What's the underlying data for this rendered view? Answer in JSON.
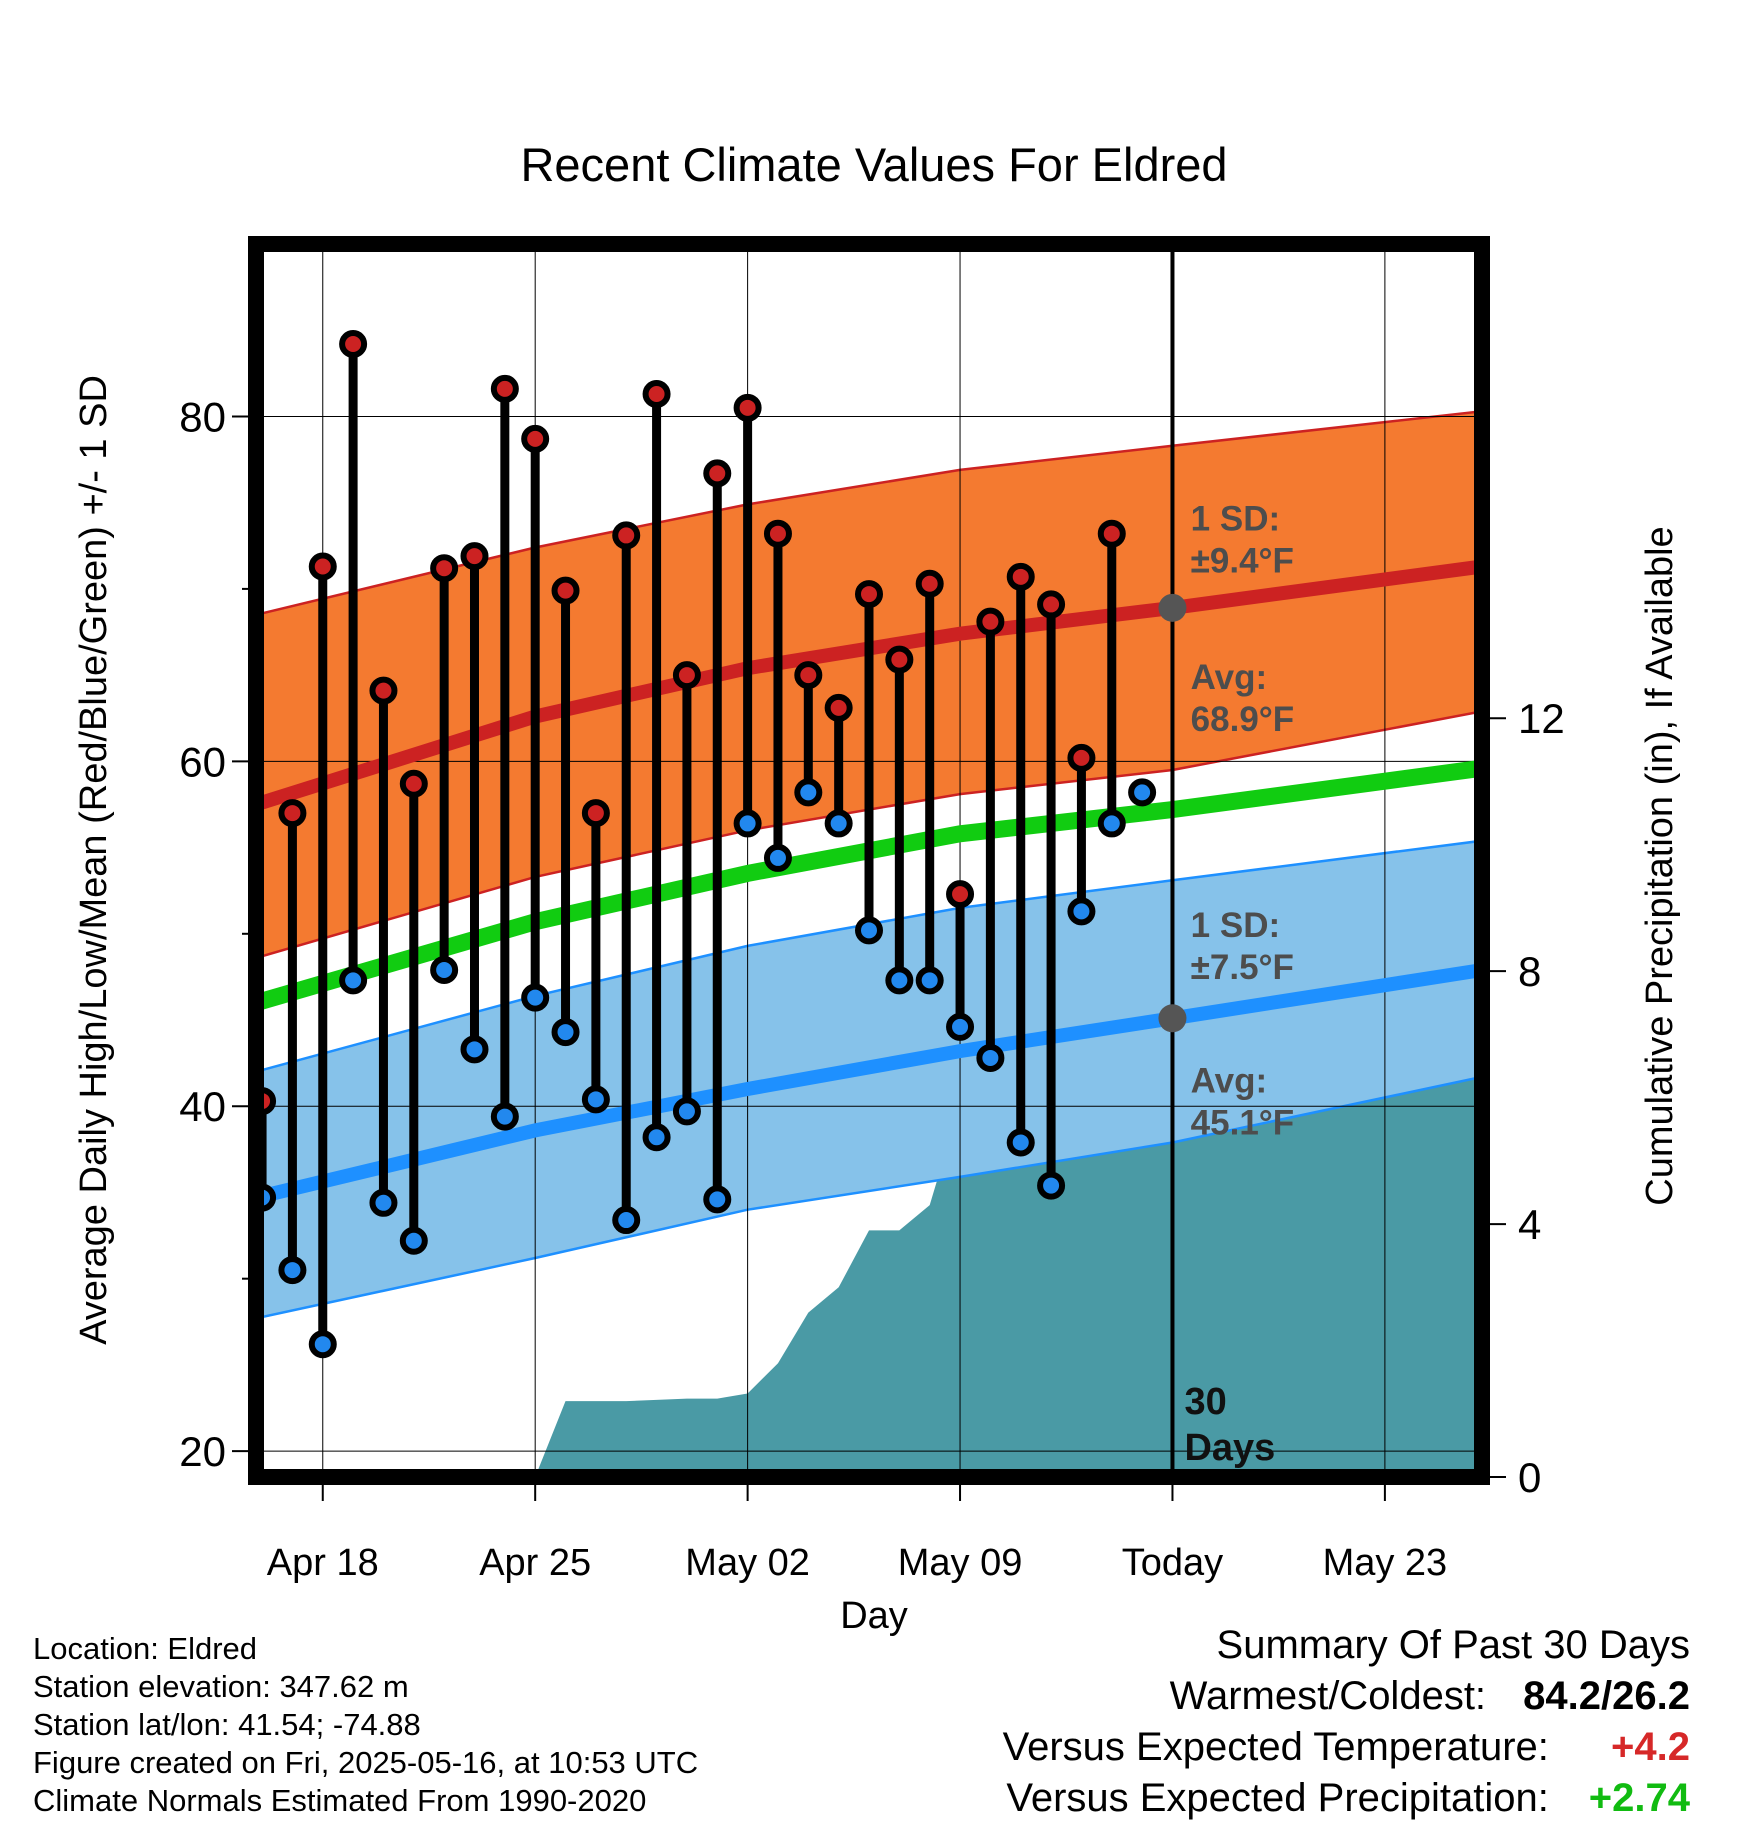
{
  "chart_data": {
    "type": "scatter",
    "title": "Recent Climate Values For Eldred",
    "xlabel": "Day",
    "ylabel": "Average Daily High/Low/Mean (Red/Blue/Green) +/- 1 SD",
    "y2label": "Cumulative Precipitation (in), If Available",
    "ylim": [
      18.5,
      90
    ],
    "y2lim": [
      0,
      19.5
    ],
    "xlim": [
      -2.2,
      38.2
    ],
    "yticks": [
      20,
      40,
      60,
      80
    ],
    "y2ticks": [
      0,
      4,
      8,
      12
    ],
    "x_tick_positions": [
      0,
      7,
      14,
      21,
      28,
      35
    ],
    "x_tick_labels": [
      "Apr 18",
      "Apr 25",
      "May 02",
      "May 09",
      "Today",
      "May 23"
    ],
    "grid": true,
    "today_marker": {
      "x": 28,
      "label_line1": "30",
      "label_line2": "Days"
    },
    "series": [
      {
        "name": "High",
        "color": "#cc2222",
        "x": [
          -2,
          -1,
          0,
          1,
          2,
          3,
          4,
          5,
          6,
          7,
          8,
          9,
          10,
          11,
          12,
          13,
          14,
          15,
          16,
          17,
          18,
          19,
          20,
          21,
          22,
          23,
          24,
          25,
          26,
          27
        ],
        "values": [
          40.3,
          57.0,
          71.3,
          84.2,
          64.1,
          58.7,
          71.2,
          71.9,
          81.6,
          78.7,
          69.9,
          57.0,
          73.1,
          81.3,
          65.0,
          76.7,
          80.5,
          73.2,
          65.0,
          63.1,
          69.7,
          65.9,
          70.3,
          52.3,
          68.1,
          70.7,
          69.1,
          60.2,
          73.2,
          null
        ]
      },
      {
        "name": "Low",
        "color": "#2288ee",
        "x": [
          -2,
          -1,
          0,
          1,
          2,
          3,
          4,
          5,
          6,
          7,
          8,
          9,
          10,
          11,
          12,
          13,
          14,
          15,
          16,
          17,
          18,
          19,
          20,
          21,
          22,
          23,
          24,
          25,
          26,
          27
        ],
        "values": [
          34.7,
          30.5,
          26.2,
          47.3,
          34.4,
          32.2,
          47.9,
          43.3,
          39.4,
          46.3,
          44.3,
          40.4,
          33.4,
          38.2,
          39.7,
          34.6,
          56.4,
          54.4,
          58.2,
          56.4,
          50.2,
          47.3,
          47.3,
          44.6,
          42.8,
          37.9,
          35.4,
          51.3,
          56.4,
          58.2
        ]
      },
      {
        "name": "Avg High",
        "color": "#cc2222",
        "x": [
          -2.2,
          7,
          14,
          21,
          28,
          38.2
        ],
        "values": [
          57.5,
          62.6,
          65.4,
          67.4,
          68.9,
          71.3
        ]
      },
      {
        "name": "Avg High +/- 1 SD",
        "color": "#f47a30",
        "x": [
          -2.2,
          7,
          14,
          21,
          28,
          38.2
        ],
        "upper": [
          68.5,
          72.4,
          74.9,
          76.9,
          78.3,
          80.3
        ],
        "lower": [
          48.6,
          53.3,
          56.0,
          58.1,
          59.5,
          62.9
        ]
      },
      {
        "name": "Avg Mean",
        "color": "#11cc11",
        "x": [
          -2.2,
          7,
          14,
          21,
          28,
          38.2
        ],
        "values": [
          46.0,
          50.7,
          53.5,
          55.8,
          57.2,
          59.6
        ]
      },
      {
        "name": "Avg Low",
        "color": "#1e90ff",
        "x": [
          -2.2,
          7,
          14,
          21,
          28,
          38.2
        ],
        "values": [
          34.7,
          38.6,
          41.0,
          43.2,
          45.1,
          47.9
        ]
      },
      {
        "name": "Avg Low +/- 1 SD",
        "color": "#86c2ea",
        "x": [
          -2.2,
          7,
          14,
          21,
          28,
          38.2
        ],
        "upper": [
          42.0,
          46.4,
          49.3,
          51.5,
          53.1,
          55.4
        ],
        "lower": [
          27.7,
          31.2,
          34.0,
          35.9,
          37.9,
          41.7
        ]
      },
      {
        "name": "Cumulative Precipitation",
        "color": "#4a9aa5",
        "x": [
          7,
          8,
          9,
          10,
          11,
          12,
          13,
          14,
          15,
          16,
          17,
          18,
          19,
          20,
          21,
          22,
          23,
          24,
          25,
          26,
          28,
          38.2
        ],
        "values": [
          0,
          1.2,
          1.2,
          1.2,
          1.22,
          1.24,
          1.24,
          1.32,
          1.8,
          2.6,
          3.0,
          3.9,
          3.9,
          4.3,
          5.9,
          5.9,
          5.9,
          5.9,
          6.3,
          6.35,
          6.35,
          6.35
        ]
      }
    ],
    "annotations": [
      {
        "text_line1": "1 SD:",
        "text_line2": "±9.4°F",
        "x": 28.6,
        "y": 73.4
      },
      {
        "text_line1": "Avg:",
        "text_line2": "68.9°F",
        "x": 28.6,
        "y": 64.2
      },
      {
        "text_line1": "1 SD:",
        "text_line2": "±7.5°F",
        "x": 28.6,
        "y": 49.8
      },
      {
        "text_line1": "Avg:",
        "text_line2": "45.1°F",
        "x": 28.6,
        "y": 40.8
      }
    ]
  },
  "info": {
    "location": "Location: Eldred",
    "elevation": "Station elevation: 347.62 m",
    "latlon": "Station lat/lon: 41.54; -74.88",
    "created": "Figure created on Fri, 2025-05-16, at 10:53 UTC",
    "normals": "Climate Normals Estimated From 1990-2020"
  },
  "summary": {
    "title": "Summary Of Past 30 Days",
    "warmest_label": "Warmest/Coldest:",
    "warmest_value": "84.2/26.2",
    "temp_label": "Versus Expected Temperature:",
    "temp_value": "+4.2",
    "temp_color": "#d62828",
    "precip_label": "Versus Expected Precipitation:",
    "precip_value": "+2.74",
    "precip_color": "#11bb11"
  }
}
